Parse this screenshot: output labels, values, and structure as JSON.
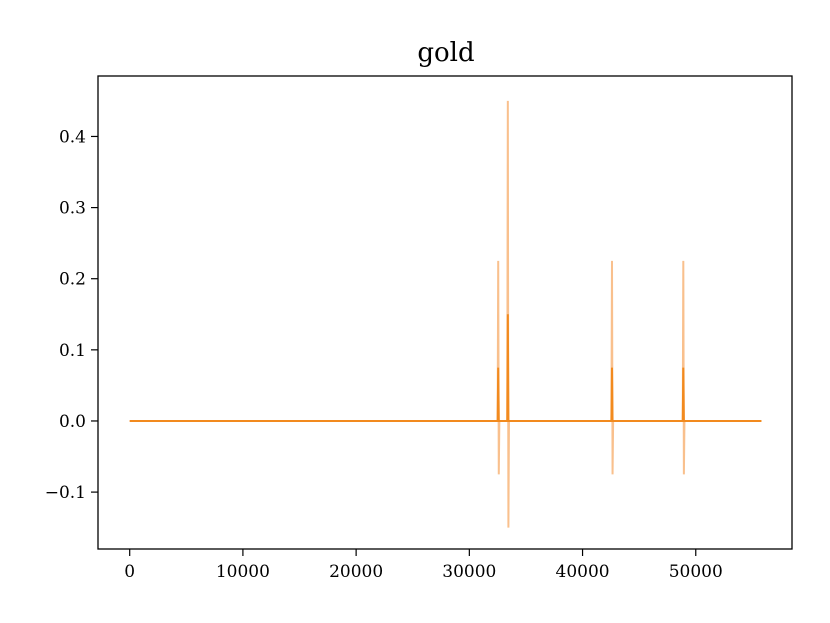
{
  "chart_data": {
    "type": "line",
    "title": "gold",
    "xlabel": "",
    "ylabel": "",
    "xlim": [
      -2800,
      58500
    ],
    "ylim": [
      -0.18,
      0.485
    ],
    "grid": false,
    "legend": "none",
    "x_ticks": [
      0,
      10000,
      20000,
      30000,
      40000,
      50000
    ],
    "y_ticks": [
      -0.1,
      0.0,
      0.1,
      0.2,
      0.3,
      0.4
    ],
    "x_tick_labels": [
      "0",
      "10000",
      "20000",
      "30000",
      "40000",
      "50000"
    ],
    "y_tick_labels": [
      "−0.1",
      "0.0",
      "0.1",
      "0.2",
      "0.3",
      "0.4"
    ],
    "series": [
      {
        "color": "#f9c08d",
        "x": [
          0,
          32500,
          32550,
          32600,
          32650,
          32700,
          33350,
          33400,
          33450,
          33500,
          33550,
          42550,
          42600,
          42650,
          42700,
          42750,
          48850,
          48900,
          48950,
          49000,
          49050,
          55800
        ],
        "values": [
          0,
          0,
          0.225,
          -0.075,
          0,
          0,
          0,
          0.45,
          -0.15,
          0,
          0,
          0,
          0.225,
          -0.075,
          0,
          0,
          0,
          0.225,
          -0.075,
          0,
          0,
          0
        ]
      },
      {
        "color": "#f28a1e",
        "x": [
          0,
          32500,
          32550,
          32600,
          32650,
          33350,
          33400,
          33450,
          33500,
          42550,
          42600,
          42650,
          42700,
          48850,
          48900,
          48950,
          49000,
          55800
        ],
        "values": [
          0,
          0,
          0.075,
          0,
          0,
          0,
          0.15,
          0,
          0,
          0,
          0.075,
          0,
          0,
          0,
          0.075,
          0,
          0,
          0
        ]
      }
    ]
  }
}
